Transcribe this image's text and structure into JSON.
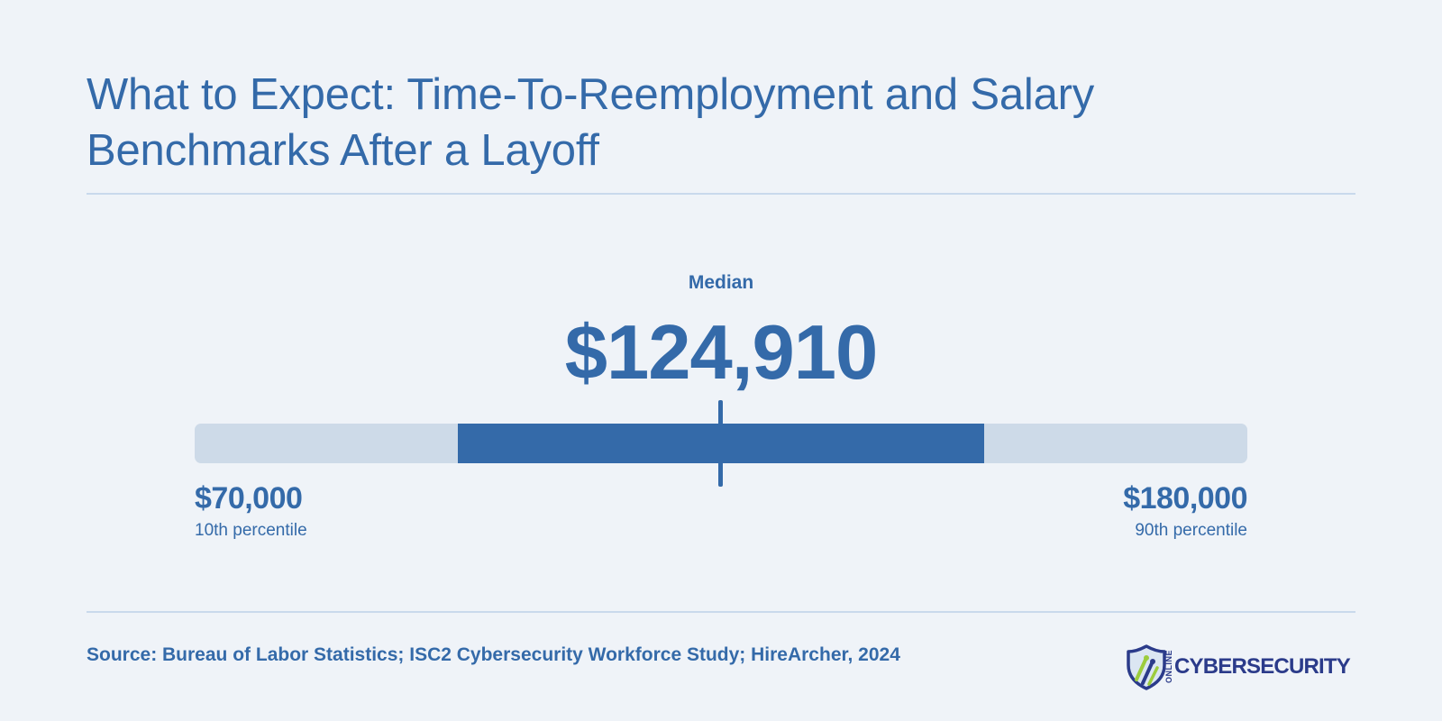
{
  "title": "What to Expect: Time-To-Reemployment and Salary Benchmarks After a Layoff",
  "median": {
    "label": "Median",
    "display": "$124,910"
  },
  "range": {
    "low_display": "$70,000",
    "low_caption": "10th percentile",
    "high_display": "$180,000",
    "high_caption": "90th percentile"
  },
  "chart_data": {
    "type": "bar",
    "title": "What to Expect: Time-To-Reemployment and Salary Benchmarks After a Layoff",
    "categories": [
      "10th percentile",
      "Median",
      "90th percentile"
    ],
    "values": [
      70000,
      124910,
      180000
    ],
    "xlabel": "",
    "ylabel": "",
    "grid": false
  },
  "footer": {
    "source": "Source: Bureau of Labor Statistics; ISC2 Cybersecurity Workforce Study; HireArcher, 2024",
    "logo_small": "ONLINE",
    "logo_word": "CYBERSECURITY"
  },
  "colors": {
    "accent": "#346aa9",
    "track": "#cddae8",
    "background": "#eff3f8",
    "logo_navy": "#2b3b8a",
    "logo_green": "#9ccc3d"
  }
}
